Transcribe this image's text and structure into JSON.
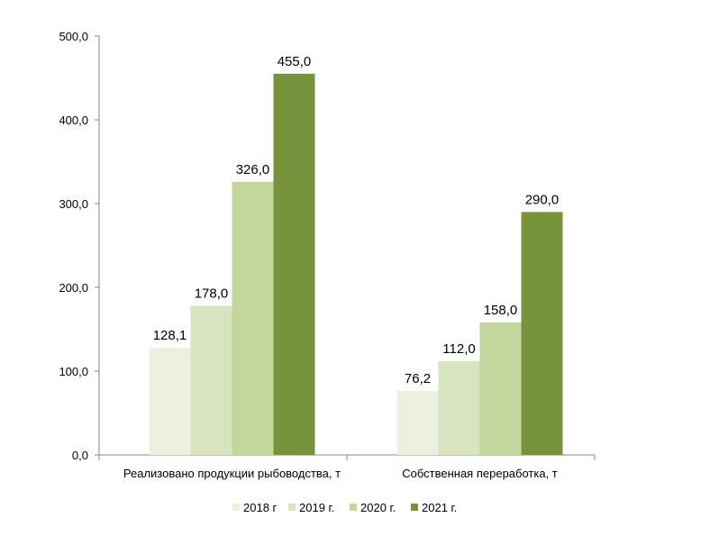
{
  "chart_data": {
    "type": "bar",
    "categories": [
      "Реализовано продукции рыбоводства, т",
      "Собственная переработка, т"
    ],
    "series": [
      {
        "name": "2018 г",
        "values": [
          128.1,
          76.2
        ],
        "color": "#ebf1de",
        "labels": [
          "128,1",
          "76,2"
        ]
      },
      {
        "name": "2019 г.",
        "values": [
          178.0,
          112.0
        ],
        "color": "#d7e4bd",
        "labels": [
          "178,0",
          "112,0"
        ]
      },
      {
        "name": "2020 г.",
        "values": [
          326.0,
          158.0
        ],
        "color": "#c3d69b",
        "labels": [
          "326,0",
          "158,0"
        ]
      },
      {
        "name": "2021 г.",
        "values": [
          455.0,
          290.0
        ],
        "color": "#77933c",
        "labels": [
          "455,0",
          "290,0"
        ]
      }
    ],
    "yticks": [
      0,
      100,
      200,
      300,
      400,
      500
    ],
    "ytick_labels": [
      "0,0",
      "100,0",
      "200,0",
      "300,0",
      "400,0",
      "500,0"
    ],
    "ylim": [
      0,
      500
    ],
    "grid": false,
    "legend": "bottom"
  }
}
